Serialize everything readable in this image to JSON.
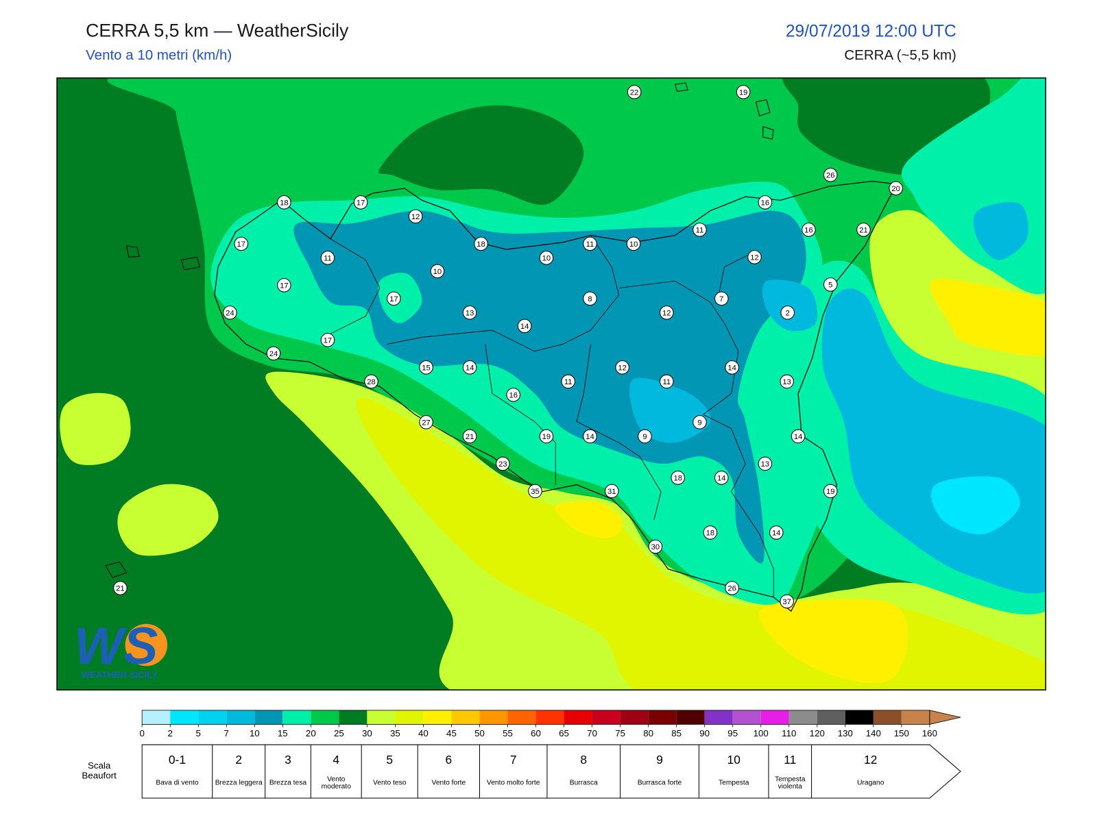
{
  "header": {
    "title": "CERRA 5,5 km — WeatherSicily",
    "subtitle": "Vento a 10 metri (km/h)",
    "datetime": "29/07/2019 12:00 UTC",
    "model": "CERRA (~5,5 km)"
  },
  "stations": [
    22,
    19,
    26,
    20,
    18,
    17,
    12,
    16,
    17,
    11,
    18,
    10,
    11,
    10,
    11,
    16,
    21,
    12,
    10,
    17,
    17,
    8,
    7,
    5,
    24,
    13,
    12,
    2,
    14,
    17,
    24,
    15,
    14,
    12,
    14,
    28,
    11,
    11,
    13,
    16,
    9,
    27,
    21,
    19,
    14,
    9,
    14,
    13,
    23,
    18,
    14,
    19,
    35,
    31,
    30,
    18,
    14,
    26,
    37,
    21
  ],
  "logo": {
    "mark": "WS",
    "text": "WEATHER SICILY"
  },
  "colorbar": {
    "ticks": [
      0,
      2,
      5,
      7,
      10,
      15,
      20,
      25,
      30,
      35,
      40,
      45,
      50,
      55,
      60,
      65,
      70,
      75,
      80,
      85,
      90,
      95,
      100,
      110,
      120,
      130,
      140,
      150,
      160
    ],
    "colors": [
      "#b4f0ff",
      "#00e6ff",
      "#00d2f0",
      "#00b9dc",
      "#0096b4",
      "#00f0aa",
      "#00c84b",
      "#007d23",
      "#c8ff32",
      "#e1f500",
      "#fff000",
      "#ffc800",
      "#ff9600",
      "#ff6400",
      "#ff3200",
      "#e60000",
      "#c8001e",
      "#a00014",
      "#780000",
      "#500000",
      "#8232c8",
      "#b450d2",
      "#e61ee6",
      "#8c8c8c",
      "#5f5f5f",
      "#000000",
      "#8c5028",
      "#c8824b"
    ]
  },
  "beaufort": {
    "title": "Scala Beaufort",
    "levels": [
      {
        "force": "0-1",
        "label": "Bava di vento"
      },
      {
        "force": "2",
        "label": "Brezza leggera"
      },
      {
        "force": "3",
        "label": "Brezza tesa"
      },
      {
        "force": "4",
        "label": "Vento moderato"
      },
      {
        "force": "5",
        "label": "Vento teso"
      },
      {
        "force": "6",
        "label": "Vento forte"
      },
      {
        "force": "7",
        "label": "Vento molto forte"
      },
      {
        "force": "8",
        "label": "Burrasca"
      },
      {
        "force": "9",
        "label": "Burrasca forte"
      },
      {
        "force": "10",
        "label": "Tempesta"
      },
      {
        "force": "11",
        "label": "Tempesta violenta"
      },
      {
        "force": "12",
        "label": "Uragano"
      }
    ]
  }
}
